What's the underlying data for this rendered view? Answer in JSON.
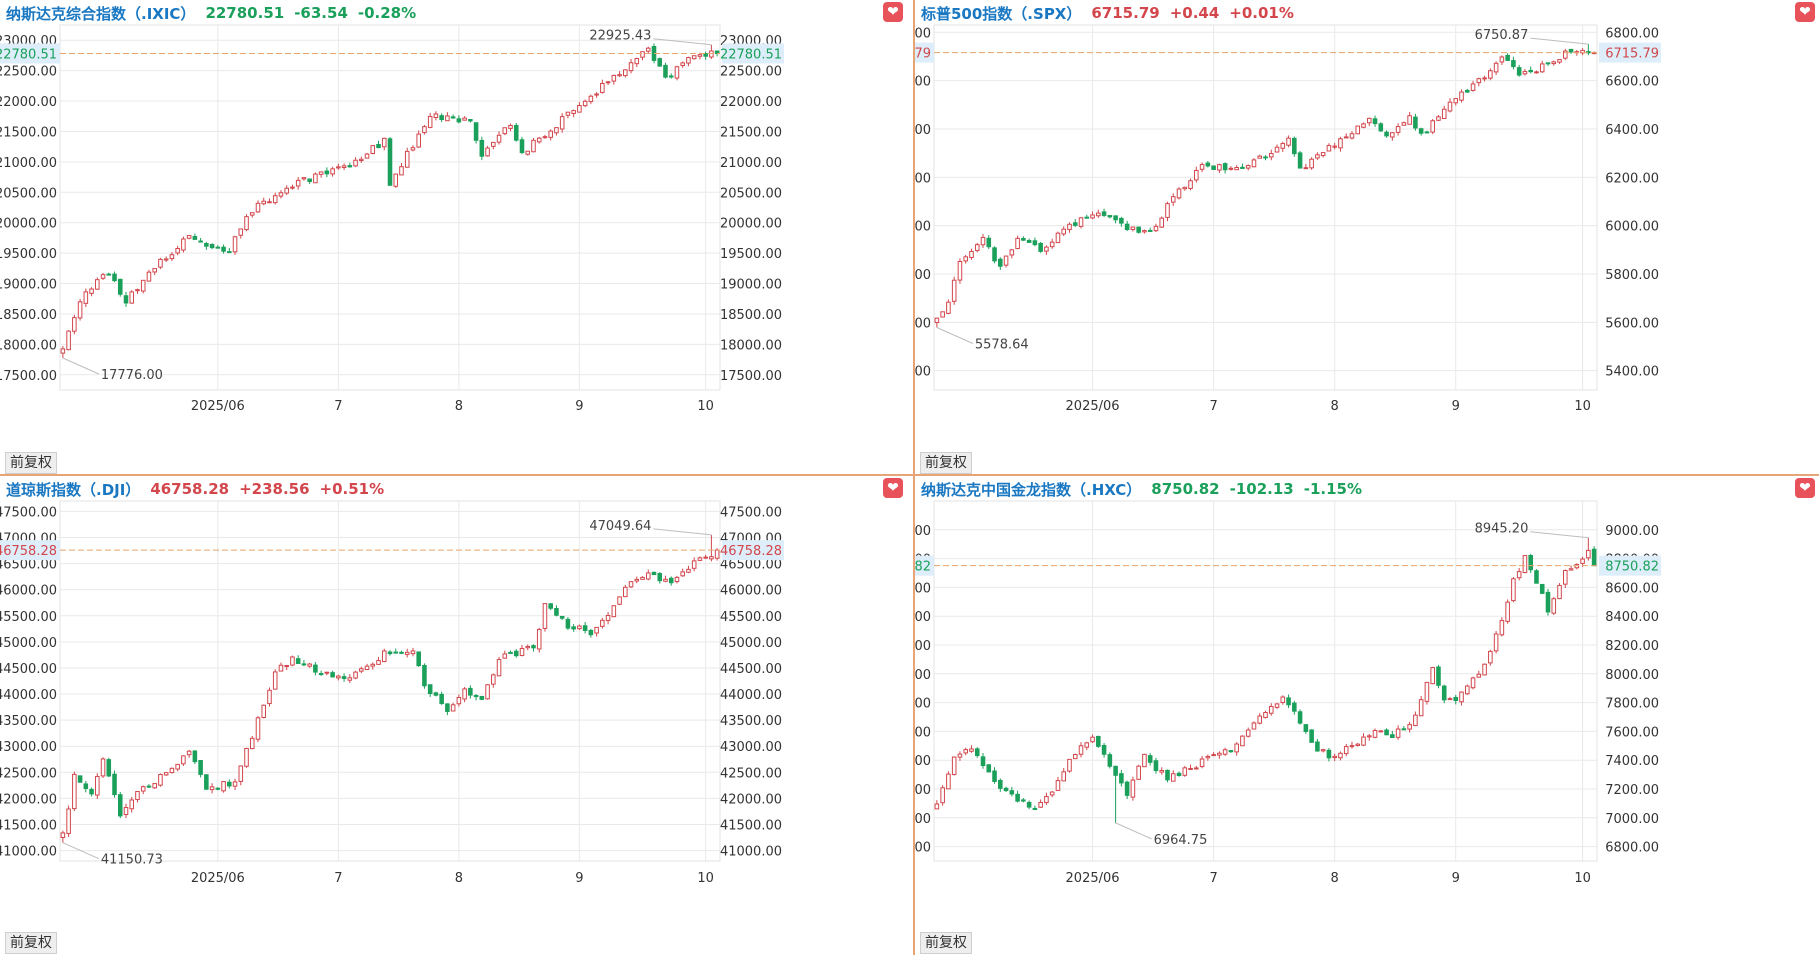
{
  "colors": {
    "up": "#d2464c",
    "down": "#1aa05a",
    "name": "#1a78c2",
    "grid": "#e9e9e9",
    "axis_text": "#333333",
    "ref_line": "#e8a46a",
    "badge_bg": "#ddeefa"
  },
  "adjust_label": "前复权",
  "panels": [
    {
      "name": "纳斯达克综合指数（.IXIC）",
      "price": "22780.51",
      "change": "-63.54",
      "pct": "-0.28%",
      "direction": "down",
      "current_label": "22780.51",
      "current_value": 22780.51,
      "high_label": "22925.43",
      "low_label": "17776.00"
    },
    {
      "name": "标普500指数（.SPX）",
      "price": "6715.79",
      "change": "+0.44",
      "pct": "+0.01%",
      "direction": "up",
      "current_label": "6715.79",
      "current_value": 6715.79,
      "high_label": "6750.87",
      "low_label": "5578.64"
    },
    {
      "name": "道琼斯指数（.DJI）",
      "price": "46758.28",
      "change": "+238.56",
      "pct": "+0.51%",
      "direction": "up",
      "current_label": "46758.28",
      "current_value": 46758.28,
      "high_label": "47049.64",
      "low_label": "41150.73"
    },
    {
      "name": "纳斯达克中国金龙指数（.HXC）",
      "price": "8750.82",
      "change": "-102.13",
      "pct": "-1.15%",
      "direction": "down",
      "current_label": "8750.82",
      "current_value": 8750.82,
      "high_label": "8945.20",
      "low_label": "6964.75"
    }
  ],
  "chart_data": [
    {
      "type": "candlestick",
      "title": "纳斯达克综合指数（.IXIC）",
      "ylim": [
        17250,
        23250
      ],
      "yticks": [
        "17500.00",
        "18000.00",
        "18500.00",
        "19000.00",
        "19500.00",
        "20000.00",
        "20500.00",
        "21000.00",
        "21500.00",
        "22000.00",
        "22500.00",
        "23000.00"
      ],
      "xticks": [
        {
          "label": "2025/06",
          "index": 27
        },
        {
          "label": "7",
          "index": 48
        },
        {
          "label": "8",
          "index": 69
        },
        {
          "label": "9",
          "index": 90
        },
        {
          "label": "10",
          "index": 112
        }
      ],
      "n": 115,
      "anchors": [
        [
          0,
          17900
        ],
        [
          3,
          18750
        ],
        [
          8,
          19200
        ],
        [
          11,
          18700
        ],
        [
          16,
          19300
        ],
        [
          22,
          19750
        ],
        [
          29,
          19500
        ],
        [
          32,
          20150
        ],
        [
          41,
          20650
        ],
        [
          50,
          20950
        ],
        [
          56,
          21350
        ],
        [
          57,
          20650
        ],
        [
          64,
          21750
        ],
        [
          71,
          21650
        ],
        [
          73,
          21150
        ],
        [
          78,
          21650
        ],
        [
          80,
          21150
        ],
        [
          89,
          21850
        ],
        [
          98,
          22550
        ],
        [
          102,
          22850
        ],
        [
          105,
          22350
        ],
        [
          110,
          22800
        ],
        [
          114,
          22780.51
        ]
      ],
      "high": {
        "index": 113,
        "value": 22925.43
      },
      "low": {
        "index": 0,
        "value": 17776.0
      }
    },
    {
      "type": "candlestick",
      "title": "标普500指数（.SPX）",
      "ylim": [
        5320,
        6830
      ],
      "yticks": [
        "5400.00",
        "5600.00",
        "5800.00",
        "6000.00",
        "6200.00",
        "6400.00",
        "6600.00",
        "6800.00"
      ],
      "xticks": [
        {
          "label": "2025/06",
          "index": 27
        },
        {
          "label": "7",
          "index": 48
        },
        {
          "label": "8",
          "index": 69
        },
        {
          "label": "9",
          "index": 90
        },
        {
          "label": "10",
          "index": 112
        }
      ],
      "n": 115,
      "anchors": [
        [
          0,
          5610
        ],
        [
          2,
          5680
        ],
        [
          4,
          5850
        ],
        [
          8,
          5950
        ],
        [
          11,
          5820
        ],
        [
          14,
          5960
        ],
        [
          18,
          5900
        ],
        [
          23,
          6000
        ],
        [
          28,
          6060
        ],
        [
          33,
          5980
        ],
        [
          38,
          5990
        ],
        [
          41,
          6120
        ],
        [
          46,
          6250
        ],
        [
          51,
          6230
        ],
        [
          58,
          6300
        ],
        [
          61,
          6350
        ],
        [
          63,
          6230
        ],
        [
          67,
          6300
        ],
        [
          71,
          6370
        ],
        [
          75,
          6440
        ],
        [
          78,
          6360
        ],
        [
          82,
          6450
        ],
        [
          84,
          6370
        ],
        [
          88,
          6480
        ],
        [
          94,
          6600
        ],
        [
          98,
          6700
        ],
        [
          101,
          6620
        ],
        [
          105,
          6660
        ],
        [
          110,
          6720
        ],
        [
          114,
          6715.79
        ]
      ],
      "high": {
        "index": 113,
        "value": 6750.87
      },
      "low": {
        "index": 0,
        "value": 5578.64
      }
    },
    {
      "type": "candlestick",
      "title": "道琼斯指数（.DJI）",
      "ylim": [
        40800,
        47700
      ],
      "yticks": [
        "41000.00",
        "41500.00",
        "42000.00",
        "42500.00",
        "43000.00",
        "43500.00",
        "44000.00",
        "44500.00",
        "45000.00",
        "45500.00",
        "46000.00",
        "46500.00",
        "47000.00",
        "47500.00"
      ],
      "xticks": [
        {
          "label": "2025/06",
          "index": 27
        },
        {
          "label": "7",
          "index": 48
        },
        {
          "label": "8",
          "index": 69
        },
        {
          "label": "9",
          "index": 90
        },
        {
          "label": "10",
          "index": 112
        }
      ],
      "n": 115,
      "anchors": [
        [
          0,
          41300
        ],
        [
          2,
          42400
        ],
        [
          5,
          42100
        ],
        [
          7,
          42700
        ],
        [
          10,
          41700
        ],
        [
          14,
          42200
        ],
        [
          18,
          42500
        ],
        [
          22,
          42900
        ],
        [
          25,
          42200
        ],
        [
          30,
          42300
        ],
        [
          33,
          43200
        ],
        [
          37,
          44400
        ],
        [
          40,
          44700
        ],
        [
          45,
          44400
        ],
        [
          50,
          44300
        ],
        [
          53,
          44500
        ],
        [
          56,
          44800
        ],
        [
          61,
          44800
        ],
        [
          63,
          44200
        ],
        [
          67,
          43700
        ],
        [
          70,
          44100
        ],
        [
          73,
          43900
        ],
        [
          76,
          44700
        ],
        [
          82,
          44900
        ],
        [
          84,
          45700
        ],
        [
          88,
          45300
        ],
        [
          92,
          45200
        ],
        [
          95,
          45500
        ],
        [
          99,
          46200
        ],
        [
          103,
          46300
        ],
        [
          106,
          46100
        ],
        [
          110,
          46500
        ],
        [
          114,
          46758.28
        ]
      ],
      "high": {
        "index": 113,
        "value": 47049.64
      },
      "low": {
        "index": 0,
        "value": 41150.73
      }
    },
    {
      "type": "candlestick",
      "title": "纳斯达克中国金龙指数（.HXC）",
      "ylim": [
        6700,
        9200
      ],
      "yticks": [
        "6800.00",
        "7000.00",
        "7200.00",
        "7400.00",
        "7600.00",
        "7800.00",
        "8000.00",
        "8200.00",
        "8400.00",
        "8600.00",
        "8800.00",
        "9000.00"
      ],
      "xticks": [
        {
          "label": "2025/06",
          "index": 27
        },
        {
          "label": "7",
          "index": 48
        },
        {
          "label": "8",
          "index": 69
        },
        {
          "label": "9",
          "index": 90
        },
        {
          "label": "10",
          "index": 112
        }
      ],
      "n": 115,
      "anchors": [
        [
          0,
          7080
        ],
        [
          3,
          7430
        ],
        [
          6,
          7500
        ],
        [
          9,
          7300
        ],
        [
          13,
          7150
        ],
        [
          17,
          7050
        ],
        [
          20,
          7200
        ],
        [
          24,
          7450
        ],
        [
          27,
          7550
        ],
        [
          29,
          7420
        ],
        [
          31,
          7300
        ],
        [
          33,
          7150
        ],
        [
          36,
          7450
        ],
        [
          38,
          7350
        ],
        [
          40,
          7280
        ],
        [
          44,
          7350
        ],
        [
          48,
          7420
        ],
        [
          51,
          7480
        ],
        [
          56,
          7700
        ],
        [
          60,
          7850
        ],
        [
          62,
          7720
        ],
        [
          65,
          7520
        ],
        [
          68,
          7420
        ],
        [
          72,
          7500
        ],
        [
          76,
          7600
        ],
        [
          79,
          7560
        ],
        [
          83,
          7700
        ],
        [
          86,
          8050
        ],
        [
          88,
          7800
        ],
        [
          91,
          7850
        ],
        [
          94,
          8000
        ],
        [
          98,
          8350
        ],
        [
          100,
          8650
        ],
        [
          102,
          8800
        ],
        [
          104,
          8650
        ],
        [
          106,
          8450
        ],
        [
          109,
          8700
        ],
        [
          113,
          8850
        ],
        [
          114,
          8750.82
        ]
      ],
      "high": {
        "index": 113,
        "value": 8945.2
      },
      "low": {
        "index": 31,
        "value": 6964.75
      }
    }
  ]
}
